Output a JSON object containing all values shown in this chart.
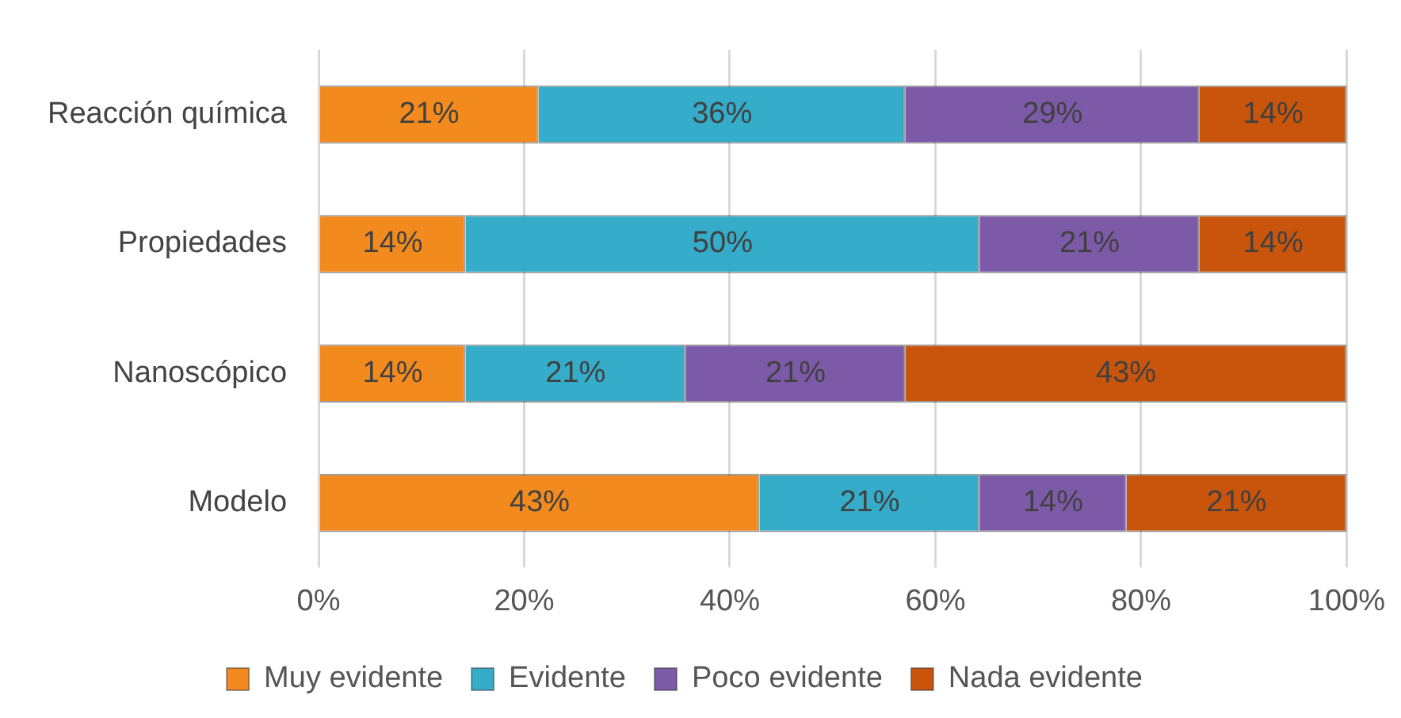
{
  "chart_data": {
    "type": "bar",
    "orientation": "horizontal",
    "stacked": true,
    "categories": [
      "Reacción química",
      "Propiedades",
      "Nanoscópico",
      "Modelo"
    ],
    "series": [
      {
        "name": "Muy evidente",
        "color": "#f28a1e",
        "values": [
          21.4,
          14.3,
          14.3,
          42.9
        ],
        "value_labels": [
          "21%",
          "14%",
          "14%",
          "43%"
        ]
      },
      {
        "name": "Evidente",
        "color": "#35acc9",
        "values": [
          35.7,
          50,
          21.4,
          21.4
        ],
        "value_labels": [
          "36%",
          "50%",
          "21%",
          "21%"
        ]
      },
      {
        "name": "Poco evidente",
        "color": "#7d5aa8",
        "values": [
          28.6,
          21.4,
          21.4,
          14.3
        ],
        "value_labels": [
          "29%",
          "21%",
          "21%",
          "14%"
        ]
      },
      {
        "name": "Nada evidente",
        "color": "#c9550c",
        "values": [
          14.3,
          14.3,
          42.9,
          21.4
        ],
        "value_labels": [
          "14%",
          "14%",
          "43%",
          "21%"
        ]
      }
    ],
    "xlim": [
      0,
      100
    ],
    "xticks": [
      {
        "value": 0,
        "label": "0%"
      },
      {
        "value": 20,
        "label": "20%"
      },
      {
        "value": 40,
        "label": "40%"
      },
      {
        "value": 60,
        "label": "60%"
      },
      {
        "value": 80,
        "label": "80%"
      },
      {
        "value": 100,
        "label": "100%"
      }
    ],
    "grid": "x",
    "legend": "bottom"
  }
}
